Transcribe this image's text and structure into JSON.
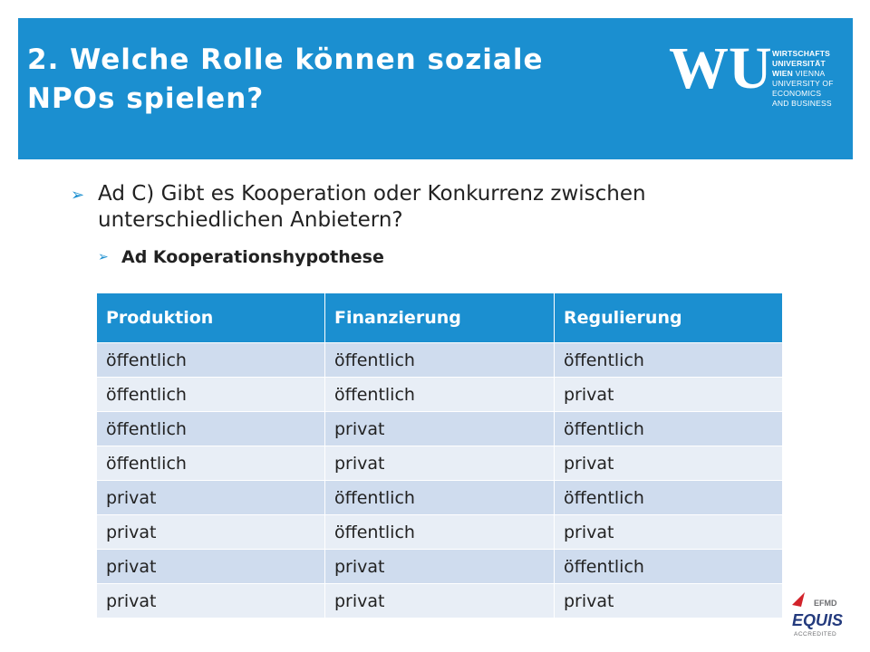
{
  "header": {
    "title_line1": "2. Welche Rolle können soziale",
    "title_line2": "NPOs spielen?",
    "background": "#1b8fd0"
  },
  "logo": {
    "mark": "WU",
    "line1": "WIRTSCHAFTS",
    "line2": "UNIVERSITÄT",
    "line3_bold": "WIEN",
    "line3_rest": "VIENNA",
    "line4": "UNIVERSITY OF",
    "line5": "ECONOMICS",
    "line6": "AND BUSINESS"
  },
  "bullets": {
    "level1_line1": "Ad C) Gibt es Kooperation oder Konkurrenz zwischen",
    "level1_line2": "unterschiedlichen Anbietern?",
    "level2": "Ad Kooperationshypothese",
    "marker_icon": "arrow-bullet-icon"
  },
  "table": {
    "headers": [
      "Produktion",
      "Finanzierung",
      "Regulierung"
    ],
    "rows": [
      [
        "öffentlich",
        "öffentlich",
        "öffentlich"
      ],
      [
        "öffentlich",
        "öffentlich",
        "privat"
      ],
      [
        "öffentlich",
        "privat",
        "öffentlich"
      ],
      [
        "öffentlich",
        "privat",
        "privat"
      ],
      [
        "privat",
        "öffentlich",
        "öffentlich"
      ],
      [
        "privat",
        "öffentlich",
        "privat"
      ],
      [
        "privat",
        "privat",
        "öffentlich"
      ],
      [
        "privat",
        "privat",
        "privat"
      ]
    ],
    "header_color": "#1b8fd0",
    "row_color_odd": "#cfdcee",
    "row_color_even": "#e8eef6"
  },
  "accreditation": {
    "org": "EFMD",
    "name": "EQUIS",
    "status": "ACCREDITED"
  }
}
